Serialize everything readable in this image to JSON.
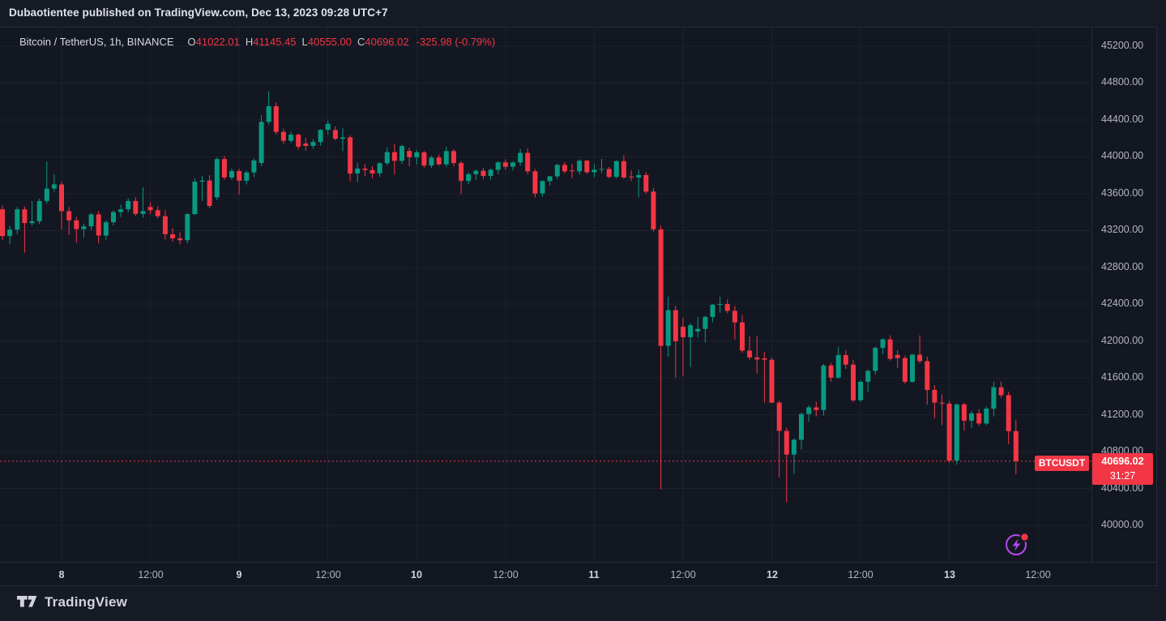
{
  "published_bar": {
    "text": "Dubaotientee published on TradingView.com, Dec 13, 2023 09:28 UTC+7"
  },
  "legend": {
    "symbol_title": "Bitcoin / TetherUS, 1h, BINANCE",
    "ohlc": [
      {
        "label": "O",
        "value": "41022.01"
      },
      {
        "label": "H",
        "value": "41145.45"
      },
      {
        "label": "L",
        "value": "40555.00"
      },
      {
        "label": "C",
        "value": "40696.02"
      }
    ],
    "change": "-325.98 (-0.79%)"
  },
  "last_price": {
    "badge": "BTCUSDT",
    "price": "40696.02",
    "countdown": "31:27"
  },
  "footer": {
    "brand": "TradingView"
  },
  "colors": {
    "up": "#089981",
    "down": "#f23645",
    "grid": "#1e222d",
    "price_line": "#f23645",
    "boost_purple": "#b44bf2",
    "badge_red": "#f23645"
  },
  "chart_data": {
    "type": "candlestick",
    "title": "Bitcoin / TetherUS, 1h, BINANCE",
    "symbol": "BTCUSDT",
    "exchange": "BINANCE",
    "interval": "1h",
    "grid": true,
    "legend_position": "top-left",
    "current_price": 40696.02,
    "current_candle_ohlc": {
      "open": 41022.01,
      "high": 41145.45,
      "low": 40555.0,
      "close": 40696.02,
      "change": -325.98,
      "change_pct": -0.79
    },
    "y_axis": {
      "min": 39750,
      "max": 45250,
      "tick_step": 400,
      "ticks": [
        45200,
        44800,
        44400,
        44000,
        43600,
        43200,
        42800,
        42400,
        42000,
        41600,
        41200,
        40800,
        40400,
        40000
      ]
    },
    "x_axis": {
      "unit": "hours_from_first_candle",
      "first_candle_time": "Dec 7 16:00",
      "labels": [
        {
          "text": "8",
          "hour": 8,
          "major": true
        },
        {
          "text": "12:00",
          "hour": 20,
          "major": false
        },
        {
          "text": "9",
          "hour": 32,
          "major": true
        },
        {
          "text": "12:00",
          "hour": 44,
          "major": false
        },
        {
          "text": "10",
          "hour": 56,
          "major": true
        },
        {
          "text": "12:00",
          "hour": 68,
          "major": false
        },
        {
          "text": "11",
          "hour": 80,
          "major": true
        },
        {
          "text": "12:00",
          "hour": 92,
          "major": false
        },
        {
          "text": "12",
          "hour": 104,
          "major": true
        },
        {
          "text": "12:00",
          "hour": 116,
          "major": false
        },
        {
          "text": "13",
          "hour": 128,
          "major": true
        },
        {
          "text": "12:00",
          "hour": 140,
          "major": false
        }
      ]
    },
    "candles": [
      [
        43430,
        43470,
        43100,
        43140
      ],
      [
        43140,
        43255,
        43050,
        43210
      ],
      [
        43210,
        43455,
        43160,
        43430
      ],
      [
        43430,
        43460,
        42960,
        43280
      ],
      [
        43280,
        43520,
        43255,
        43300
      ],
      [
        43300,
        43545,
        43270,
        43520
      ],
      [
        43520,
        43950,
        43490,
        43655
      ],
      [
        43655,
        43810,
        43620,
        43700
      ],
      [
        43700,
        43730,
        43210,
        43410
      ],
      [
        43410,
        43455,
        43150,
        43310
      ],
      [
        43310,
        43350,
        43070,
        43215
      ],
      [
        43215,
        43275,
        43120,
        43245
      ],
      [
        43245,
        43390,
        43205,
        43375
      ],
      [
        43375,
        43410,
        43060,
        43145
      ],
      [
        43145,
        43310,
        43100,
        43290
      ],
      [
        43290,
        43420,
        43255,
        43400
      ],
      [
        43400,
        43480,
        43345,
        43430
      ],
      [
        43430,
        43550,
        43395,
        43520
      ],
      [
        43520,
        43560,
        43360,
        43380
      ],
      [
        43380,
        43670,
        43340,
        43410
      ],
      [
        43455,
        43505,
        43380,
        43420
      ],
      [
        43420,
        43465,
        43330,
        43355
      ],
      [
        43355,
        43420,
        43100,
        43160
      ],
      [
        43160,
        43225,
        43080,
        43115
      ],
      [
        43115,
        43180,
        43050,
        43095
      ],
      [
        43095,
        43390,
        43060,
        43378
      ],
      [
        43378,
        43765,
        43370,
        43730
      ],
      [
        43730,
        43795,
        43520,
        43742
      ],
      [
        43742,
        43800,
        43440,
        43467
      ],
      [
        43560,
        43990,
        43530,
        43975
      ],
      [
        43975,
        44010,
        43750,
        43775
      ],
      [
        43775,
        43872,
        43748,
        43845
      ],
      [
        43845,
        43870,
        43590,
        43740
      ],
      [
        43740,
        43852,
        43700,
        43830
      ],
      [
        43830,
        43982,
        43778,
        43960
      ],
      [
        43933,
        44450,
        43898,
        44379
      ],
      [
        44379,
        44710,
        44350,
        44549
      ],
      [
        44549,
        44593,
        44240,
        44270
      ],
      [
        44270,
        44305,
        44140,
        44173
      ],
      [
        44173,
        44272,
        44150,
        44240
      ],
      [
        44240,
        44252,
        44080,
        44110
      ],
      [
        44144,
        44205,
        44065,
        44118
      ],
      [
        44118,
        44192,
        44088,
        44160
      ],
      [
        44160,
        44300,
        44120,
        44293
      ],
      [
        44293,
        44392,
        44240,
        44358
      ],
      [
        44290,
        44330,
        44178,
        44196
      ],
      [
        44196,
        44310,
        44060,
        44210
      ],
      [
        44210,
        44232,
        43733,
        43818
      ],
      [
        43818,
        43932,
        43725,
        43872
      ],
      [
        43872,
        43922,
        43790,
        43856
      ],
      [
        43856,
        43900,
        43768,
        43820
      ],
      [
        43820,
        43942,
        43782,
        43930
      ],
      [
        43930,
        44102,
        43908,
        44050
      ],
      [
        44050,
        44143,
        43806,
        43956
      ],
      [
        43956,
        44132,
        43922,
        44117
      ],
      [
        44063,
        44100,
        43898,
        43995
      ],
      [
        43995,
        44070,
        43915,
        44048
      ],
      [
        44048,
        44062,
        43882,
        43905
      ],
      [
        43905,
        44012,
        43878,
        43992
      ],
      [
        43992,
        44026,
        43902,
        43918
      ],
      [
        43918,
        44108,
        43888,
        44062
      ],
      [
        44062,
        44082,
        43898,
        43932
      ],
      [
        43932,
        43952,
        43598,
        43738
      ],
      [
        43738,
        43832,
        43702,
        43812
      ],
      [
        43812,
        43862,
        43752,
        43848
      ],
      [
        43848,
        43880,
        43758,
        43792
      ],
      [
        43792,
        43872,
        43752,
        43858
      ],
      [
        43858,
        43952,
        43812,
        43940
      ],
      [
        43940,
        43972,
        43858,
        43892
      ],
      [
        43892,
        43952,
        43850,
        43938
      ],
      [
        43938,
        44086,
        43902,
        44042
      ],
      [
        44042,
        44092,
        43808,
        43842
      ],
      [
        43842,
        43868,
        43558,
        43602
      ],
      [
        43602,
        43748,
        43568,
        43736
      ],
      [
        43736,
        43795,
        43688,
        43788
      ],
      [
        43788,
        43928,
        43758,
        43912
      ],
      [
        43912,
        43942,
        43818,
        43842
      ],
      [
        43852,
        43922,
        43768,
        43842
      ],
      [
        43842,
        43972,
        43808,
        43958
      ],
      [
        43958,
        43965,
        43810,
        43832
      ],
      [
        43832,
        43922,
        43780,
        43860
      ],
      [
        43860,
        43978,
        43822,
        43868
      ],
      [
        43868,
        43890,
        43768,
        43782
      ],
      [
        43782,
        43962,
        43762,
        43952
      ],
      [
        43952,
        44018,
        43762,
        43775
      ],
      [
        43785,
        43852,
        43738,
        43775
      ],
      [
        43775,
        43858,
        43559,
        43802
      ],
      [
        43802,
        43832,
        43598,
        43622
      ],
      [
        43622,
        43662,
        43188,
        43212
      ],
      [
        43212,
        43252,
        40390,
        41948
      ],
      [
        41948,
        42482,
        41832,
        42335
      ],
      [
        42335,
        42382,
        41602,
        41998
      ],
      [
        42155,
        42252,
        41622,
        42042
      ],
      [
        42042,
        42192,
        41718,
        42172
      ],
      [
        42105,
        42262,
        42038,
        42132
      ],
      [
        42132,
        42272,
        41985,
        42262
      ],
      [
        42262,
        42402,
        42205,
        42394
      ],
      [
        42394,
        42482,
        42308,
        42402
      ],
      [
        42402,
        42452,
        42302,
        42328
      ],
      [
        42328,
        42382,
        42018,
        42202
      ],
      [
        42202,
        42282,
        41872,
        41896
      ],
      [
        41896,
        42052,
        41798,
        41822
      ],
      [
        41822,
        42056,
        41646,
        41800
      ],
      [
        41812,
        41882,
        41332,
        41798
      ],
      [
        41798,
        41822,
        41328,
        41332
      ],
      [
        41332,
        41352,
        40518,
        41025
      ],
      [
        41025,
        41062,
        40250,
        40768
      ],
      [
        40768,
        40942,
        40558,
        40928
      ],
      [
        40928,
        41222,
        40822,
        41208
      ],
      [
        41208,
        41302,
        41122,
        41280
      ],
      [
        41280,
        41342,
        41182,
        41252
      ],
      [
        41252,
        41752,
        41192,
        41735
      ],
      [
        41735,
        41762,
        41558,
        41603
      ],
      [
        41603,
        41938,
        41592,
        41848
      ],
      [
        41848,
        41902,
        41698,
        41744
      ],
      [
        41744,
        41792,
        41338,
        41357
      ],
      [
        41357,
        41572,
        41338,
        41558
      ],
      [
        41558,
        41692,
        41448,
        41676
      ],
      [
        41676,
        41942,
        41638,
        41926
      ],
      [
        41926,
        42032,
        41858,
        42018
      ],
      [
        42018,
        42062,
        41788,
        41807
      ],
      [
        41850,
        41902,
        41706,
        41815
      ],
      [
        41815,
        41842,
        41538,
        41558
      ],
      [
        41558,
        41862,
        41548,
        41852
      ],
      [
        41852,
        42062,
        41758,
        41782
      ],
      [
        41782,
        41832,
        41308,
        41470
      ],
      [
        41470,
        41522,
        41162,
        41332
      ],
      [
        41332,
        41422,
        41088,
        41322
      ],
      [
        41322,
        41352,
        40678,
        40702
      ],
      [
        40702,
        41322,
        40658,
        41312
      ],
      [
        41312,
        41332,
        41028,
        41136
      ],
      [
        41136,
        41242,
        41058,
        41216
      ],
      [
        41216,
        41262,
        41078,
        41105
      ],
      [
        41105,
        41292,
        41088,
        41266
      ],
      [
        41266,
        41558,
        41182,
        41498
      ],
      [
        41498,
        41562,
        41382,
        41412
      ],
      [
        41412,
        41452,
        40878,
        41022
      ],
      [
        41022.01,
        41145.45,
        40555.0,
        40696.02
      ]
    ]
  }
}
